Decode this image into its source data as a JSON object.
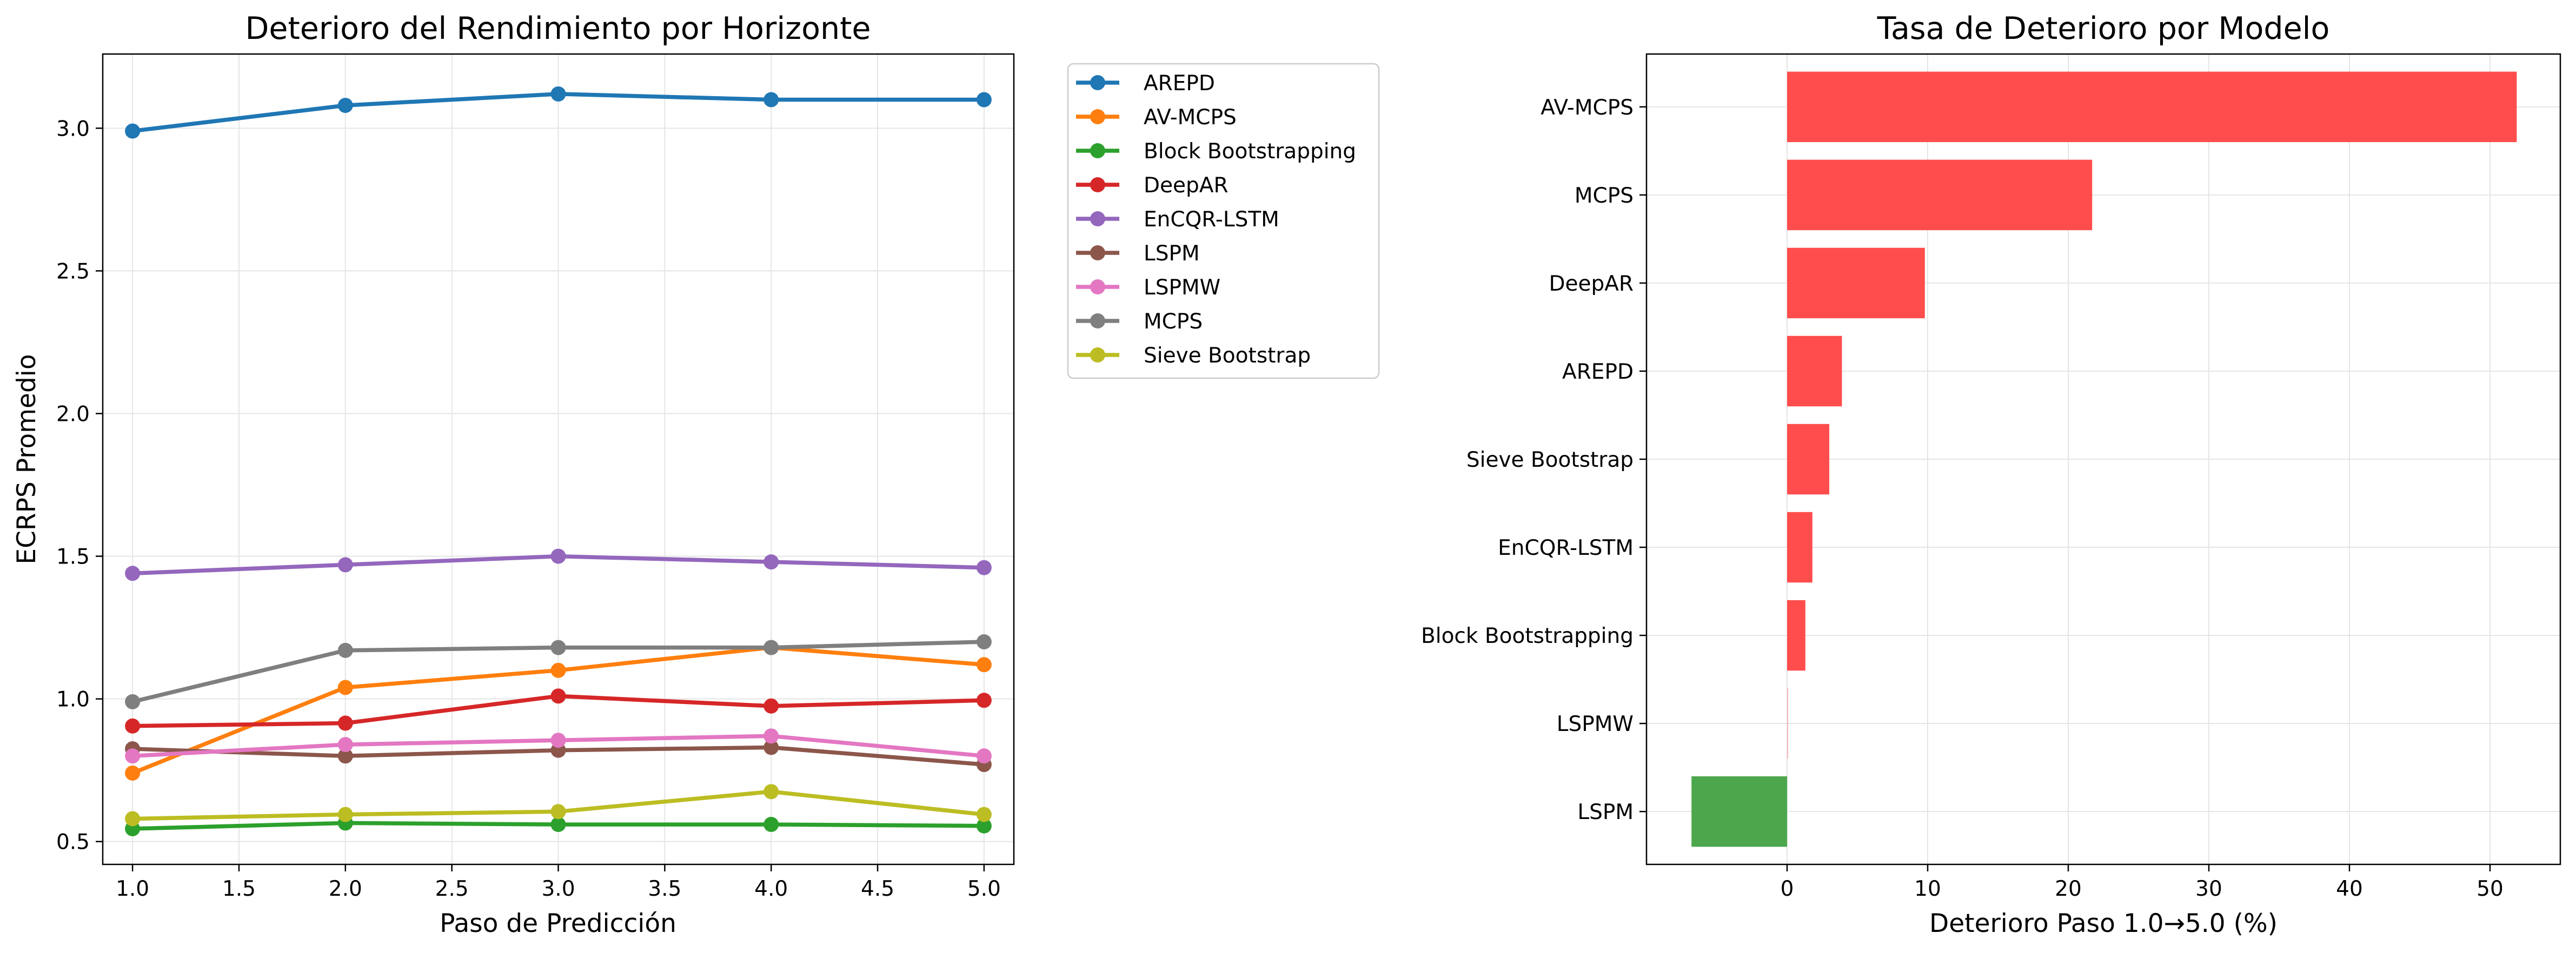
{
  "chart_data": [
    {
      "type": "line",
      "title": "Deterioro del Rendimiento por Horizonte",
      "xlabel": "Paso de Predicción",
      "ylabel": "ECRPS Promedio",
      "x": [
        1.0,
        2.0,
        3.0,
        4.0,
        5.0
      ],
      "xlim": [
        0.86,
        5.14
      ],
      "ylim": [
        0.42,
        3.26
      ],
      "xticks": [
        "1.0",
        "1.5",
        "2.0",
        "2.5",
        "3.0",
        "3.5",
        "4.0",
        "4.5",
        "5.0"
      ],
      "yticks": [
        "0.5",
        "1.0",
        "1.5",
        "2.0",
        "2.5",
        "3.0"
      ],
      "grid": true,
      "legend": "outside-right",
      "series": [
        {
          "name": "AREPD",
          "color": "#1f77b4",
          "values": [
            2.99,
            3.08,
            3.12,
            3.1,
            3.1
          ]
        },
        {
          "name": "AV-MCPS",
          "color": "#ff7f0e",
          "values": [
            0.74,
            1.04,
            1.1,
            1.18,
            1.12
          ]
        },
        {
          "name": "Block Bootstrapping",
          "color": "#2ca02c",
          "values": [
            0.545,
            0.565,
            0.56,
            0.56,
            0.555
          ]
        },
        {
          "name": "DeepAR",
          "color": "#d62728",
          "values": [
            0.905,
            0.915,
            1.01,
            0.975,
            0.995
          ]
        },
        {
          "name": "EnCQR-LSTM",
          "color": "#9467bd",
          "values": [
            1.44,
            1.47,
            1.5,
            1.48,
            1.46
          ]
        },
        {
          "name": "LSPM",
          "color": "#8c564b",
          "values": [
            0.825,
            0.8,
            0.82,
            0.83,
            0.77
          ]
        },
        {
          "name": "LSPMW",
          "color": "#e377c2",
          "values": [
            0.8,
            0.84,
            0.855,
            0.87,
            0.8
          ]
        },
        {
          "name": "MCPS",
          "color": "#7f7f7f",
          "values": [
            0.99,
            1.17,
            1.18,
            1.18,
            1.2
          ]
        },
        {
          "name": "Sieve Bootstrap",
          "color": "#bcbd22",
          "values": [
            0.58,
            0.595,
            0.605,
            0.675,
            0.595
          ]
        }
      ]
    },
    {
      "type": "bar",
      "orientation": "horizontal",
      "title": "Tasa de Deterioro por Modelo",
      "xlabel": "Deterioro Paso 1.0→5.0 (%)",
      "ylabel": "",
      "xlim": [
        -10,
        55
      ],
      "xticks": [
        "0",
        "10",
        "20",
        "30",
        "40",
        "50"
      ],
      "grid": true,
      "categories": [
        "AV-MCPS",
        "MCPS",
        "DeepAR",
        "AREPD",
        "Sieve Bootstrap",
        "EnCQR-LSTM",
        "Block Bootstrapping",
        "LSPMW",
        "LSPM"
      ],
      "values": [
        51.9,
        21.7,
        9.8,
        3.9,
        3.0,
        1.8,
        1.3,
        0.0,
        -6.8
      ],
      "colors": {
        "positive": "#ff4d4d",
        "negative": "#4ca64c"
      }
    }
  ]
}
